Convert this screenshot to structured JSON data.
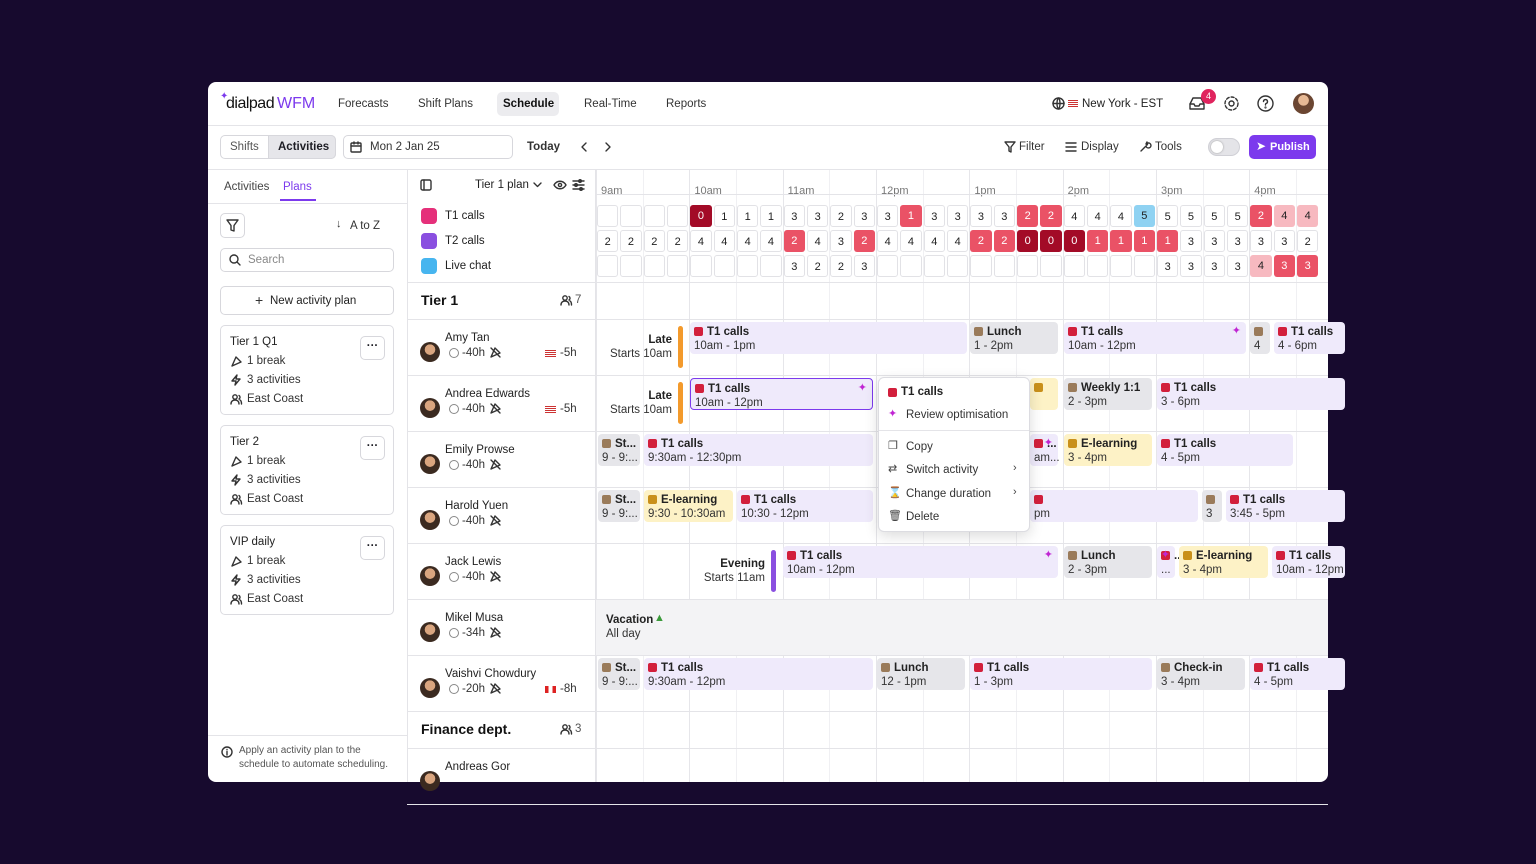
{
  "nav": {
    "logo": "dialpad",
    "product": "WFM",
    "items": [
      "Forecasts",
      "Shift Plans",
      "Schedule",
      "Real-Time",
      "Reports"
    ],
    "active": 2,
    "timezone": "New York - EST",
    "notifications": 4
  },
  "toolbar": {
    "views": [
      "Shifts",
      "Activities"
    ],
    "active_view": 1,
    "date": "Mon 2 Jan 25",
    "today": "Today",
    "filter": "Filter",
    "display": "Display",
    "tools": "Tools",
    "publish": "Publish"
  },
  "sidebar": {
    "tabs": [
      "Activities",
      "Plans"
    ],
    "active_tab": 1,
    "sort": "A to Z",
    "search_placeholder": "Search",
    "new_plan": "New activity plan",
    "plans": [
      {
        "name": "Tier 1 Q1",
        "breaks": "1 break",
        "activities": "3 activities",
        "region": "East Coast"
      },
      {
        "name": "Tier 2",
        "breaks": "1 break",
        "activities": "3 activities",
        "region": "East Coast"
      },
      {
        "name": "VIP daily",
        "breaks": "1 break",
        "activities": "3 activities",
        "region": "East Coast"
      }
    ],
    "note": "Apply an activity plan to the schedule to automate scheduling."
  },
  "plan": {
    "name": "Tier 1 plan",
    "hours": [
      "9am",
      "10am",
      "11am",
      "12pm",
      "1pm",
      "2pm",
      "3pm",
      "4pm"
    ],
    "palette": {
      "e": "#ffffff",
      "w": "#ffffff",
      "d": "#a30b27",
      "r": "#ea5266",
      "p": "#f7b9c0",
      "b": "#8fd2f2"
    },
    "demand": [
      {
        "name": "T1 calls",
        "color": "#e5307a",
        "values": [
          null,
          null,
          null,
          null,
          0,
          1,
          1,
          1,
          3,
          3,
          2,
          3,
          3,
          1,
          3,
          3,
          3,
          3,
          2,
          2,
          4,
          4,
          4,
          5,
          5,
          5,
          5,
          5,
          2,
          4,
          4
        ],
        "shades": [
          "e",
          "e",
          "e",
          "e",
          "d",
          "w",
          "w",
          "w",
          "w",
          "w",
          "w",
          "w",
          "w",
          "r",
          "w",
          "w",
          "w",
          "w",
          "r",
          "r",
          "w",
          "w",
          "w",
          "b",
          "w",
          "w",
          "w",
          "w",
          "r",
          "p",
          "p"
        ]
      },
      {
        "name": "T2 calls",
        "color": "#8a4fe0",
        "values": [
          2,
          2,
          2,
          2,
          4,
          4,
          4,
          4,
          2,
          4,
          3,
          2,
          4,
          4,
          4,
          4,
          2,
          2,
          0,
          0,
          0,
          1,
          1,
          1,
          1,
          3,
          3,
          3,
          3,
          3,
          2
        ],
        "shades": [
          "w",
          "w",
          "w",
          "w",
          "w",
          "w",
          "w",
          "w",
          "r",
          "w",
          "w",
          "r",
          "w",
          "w",
          "w",
          "w",
          "r",
          "r",
          "d",
          "d",
          "d",
          "r",
          "r",
          "r",
          "r",
          "w",
          "w",
          "w",
          "w",
          "w",
          "w"
        ]
      },
      {
        "name": "Live chat",
        "color": "#47b5ef",
        "values": [
          null,
          null,
          null,
          null,
          null,
          null,
          null,
          null,
          3,
          2,
          2,
          3,
          null,
          null,
          null,
          null,
          null,
          null,
          null,
          null,
          null,
          null,
          null,
          null,
          3,
          3,
          3,
          3,
          4,
          3,
          3
        ],
        "shades": [
          "e",
          "e",
          "e",
          "e",
          "e",
          "e",
          "e",
          "e",
          "w",
          "w",
          "w",
          "w",
          "e",
          "e",
          "e",
          "e",
          "e",
          "e",
          "e",
          "e",
          "e",
          "e",
          "e",
          "e",
          "w",
          "w",
          "w",
          "w",
          "p",
          "r",
          "r"
        ]
      }
    ]
  },
  "groups": [
    {
      "name": "Tier 1",
      "count": 7,
      "agents": [
        {
          "name": "Amy Tan",
          "hours": "-40h",
          "flag": "us",
          "offset": "-5h",
          "shift": {
            "name": "Late",
            "start": "Starts 10am",
            "color": "#f39a2c"
          },
          "blocks": [
            {
              "label": "T1 calls",
              "time": "10am - 1pm",
              "color": "#efeafb"
            },
            {
              "label": "Lunch",
              "time": "1 - 2pm",
              "color": "#e6e6ea"
            },
            {
              "label": "T1 calls",
              "time": "10am - 12pm",
              "color": "#efeafb",
              "sparkle": true
            },
            {
              "time": "4",
              "color": "#e6e6ea"
            },
            {
              "label": "T1 calls",
              "time": "4 - 6pm",
              "color": "#efeafb"
            }
          ]
        },
        {
          "name": "Andrea Edwards",
          "hours": "-40h",
          "flag": "us",
          "offset": "-5h",
          "shift": {
            "name": "Late",
            "start": "Starts 10am",
            "color": "#f39a2c"
          },
          "blocks": [
            {
              "label": "T1 calls",
              "time": "10am - 12pm",
              "color": "#efeafb",
              "sparkle": true,
              "selected": true
            },
            {
              "color": "#fdf2c6"
            },
            {
              "label": "Weekly 1:1",
              "time": "2 - 3pm",
              "color": "#e6e6ea"
            },
            {
              "label": "T1 calls",
              "time": "3 - 6pm",
              "color": "#efeafb"
            }
          ]
        },
        {
          "name": "Emily Prowse",
          "hours": "-40h",
          "blocks": [
            {
              "label": "St...",
              "time": "9 - 9:...",
              "color": "#e6e6ea"
            },
            {
              "label": "T1 calls",
              "time": "9:30am - 12:30pm",
              "color": "#efeafb"
            },
            {
              "label": "...",
              "time": "am...",
              "color": "#efeafb",
              "sparkle": true
            },
            {
              "label": "E-learning",
              "time": "3 - 4pm",
              "color": "#fdf2c6"
            },
            {
              "label": "T1 calls",
              "time": "4 - 5pm",
              "color": "#efeafb"
            }
          ]
        },
        {
          "name": "Harold Yuen",
          "hours": "-40h",
          "blocks": [
            {
              "label": "St...",
              "time": "9 - 9:...",
              "color": "#e6e6ea"
            },
            {
              "label": "E-learning",
              "time": "9:30 - 10:30am",
              "color": "#fdf2c6"
            },
            {
              "label": "T1 calls",
              "time": "10:30 - 12pm",
              "color": "#efeafb"
            },
            {
              "time": "pm",
              "color": "#efeafb"
            },
            {
              "time": "3",
              "color": "#e6e6ea"
            },
            {
              "label": "T1 calls",
              "time": "3:45 - 5pm",
              "color": "#efeafb"
            }
          ]
        },
        {
          "name": "Jack Lewis",
          "hours": "-40h",
          "shift": {
            "name": "Evening",
            "start": "Starts 11am",
            "color": "#8a4fe0"
          },
          "blocks": [
            {
              "label": "T1 calls",
              "time": "10am - 12pm",
              "color": "#efeafb",
              "sparkle": true
            },
            {
              "label": "Lunch",
              "time": "2 - 3pm",
              "color": "#e6e6ea"
            },
            {
              "label": "...",
              "time": "...",
              "color": "#efeafb",
              "sparkle": true
            },
            {
              "label": "E-learning",
              "time": "3 - 4pm",
              "color": "#fdf2c6"
            },
            {
              "label": "T1 calls",
              "time": "10am - 12pm",
              "color": "#efeafb"
            }
          ]
        },
        {
          "name": "Mikel Musa",
          "hours": "-34h",
          "vacation": {
            "label": "Vacation",
            "time": "All day"
          }
        },
        {
          "name": "Vaishvi Chowdury",
          "hours": "-20h",
          "flag": "ca",
          "offset": "-8h",
          "blocks": [
            {
              "label": "St...",
              "time": "9 - 9:...",
              "color": "#e6e6ea"
            },
            {
              "label": "T1 calls",
              "time": "9:30am - 12pm",
              "color": "#efeafb"
            },
            {
              "label": "Lunch",
              "time": "12 - 1pm",
              "color": "#e6e6ea"
            },
            {
              "label": "T1 calls",
              "time": "1 - 3pm",
              "color": "#efeafb"
            },
            {
              "label": "Check-in",
              "time": "3 - 4pm",
              "color": "#e6e6ea"
            },
            {
              "label": "T1 calls",
              "time": "4 - 5pm",
              "color": "#efeafb"
            }
          ]
        }
      ]
    },
    {
      "name": "Finance dept.",
      "count": 3,
      "agents": [
        {
          "name": "Andreas Gor"
        }
      ]
    }
  ],
  "context_menu": {
    "title": "T1 calls",
    "items": [
      "Review optimisation",
      "Copy",
      "Switch activity",
      "Change duration",
      "Delete"
    ]
  }
}
